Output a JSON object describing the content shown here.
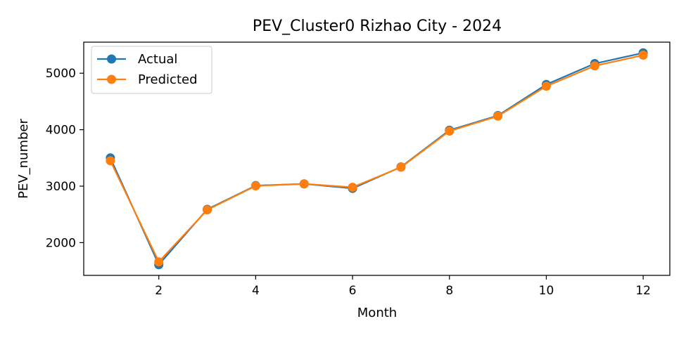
{
  "chart_data": {
    "type": "line",
    "title": "PEV_Cluster0 Rizhao City - 2024",
    "xlabel": "Month",
    "ylabel": "PEV_number",
    "x": [
      1,
      2,
      3,
      4,
      5,
      6,
      7,
      8,
      9,
      10,
      11,
      12
    ],
    "series": [
      {
        "name": "Actual",
        "color": "#1f77b4",
        "values": [
          3500,
          1610,
          2590,
          3010,
          3040,
          2960,
          3340,
          3990,
          4250,
          4800,
          5170,
          5360
        ]
      },
      {
        "name": "Predicted",
        "color": "#ff7f0e",
        "values": [
          3450,
          1660,
          2580,
          3005,
          3040,
          2980,
          3335,
          3975,
          4240,
          4770,
          5130,
          5320
        ]
      }
    ],
    "xlim": [
      0.45,
      12.55
    ],
    "ylim": [
      1420,
      5550
    ],
    "xticks": [
      2,
      4,
      6,
      8,
      10,
      12
    ],
    "yticks": [
      2000,
      3000,
      4000,
      5000
    ],
    "grid": false,
    "legend_position": "top-left",
    "marker": "circle"
  }
}
